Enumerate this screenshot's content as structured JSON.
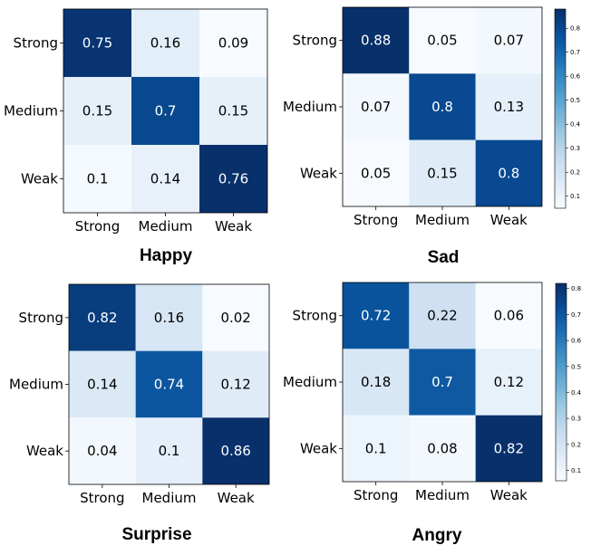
{
  "chart_data": [
    {
      "type": "heatmap",
      "title": "Happy",
      "x_categories": [
        "Strong",
        "Medium",
        "Weak"
      ],
      "y_categories": [
        "Strong",
        "Medium",
        "Weak"
      ],
      "values": [
        [
          0.75,
          0.16,
          0.09
        ],
        [
          0.15,
          0.7,
          0.15
        ],
        [
          0.1,
          0.14,
          0.76
        ]
      ],
      "colorbar": false,
      "colormap": "Blues"
    },
    {
      "type": "heatmap",
      "title": "Sad",
      "x_categories": [
        "Strong",
        "Medium",
        "Weak"
      ],
      "y_categories": [
        "Strong",
        "Medium",
        "Weak"
      ],
      "values": [
        [
          0.88,
          0.05,
          0.07
        ],
        [
          0.07,
          0.8,
          0.13
        ],
        [
          0.05,
          0.15,
          0.8
        ]
      ],
      "colorbar": true,
      "colorbar_ticks": [
        "0.1",
        "0.2",
        "0.3",
        "0.4",
        "0.5",
        "0.6",
        "0.7",
        "0.8"
      ],
      "colormap": "Blues"
    },
    {
      "type": "heatmap",
      "title": "Surprise",
      "x_categories": [
        "Strong",
        "Medium",
        "Weak"
      ],
      "y_categories": [
        "Strong",
        "Medium",
        "Weak"
      ],
      "values": [
        [
          0.82,
          0.16,
          0.02
        ],
        [
          0.14,
          0.74,
          0.12
        ],
        [
          0.04,
          0.1,
          0.86
        ]
      ],
      "colorbar": false,
      "colormap": "Blues"
    },
    {
      "type": "heatmap",
      "title": "Angry",
      "x_categories": [
        "Strong",
        "Medium",
        "Weak"
      ],
      "y_categories": [
        "Strong",
        "Medium",
        "Weak"
      ],
      "values": [
        [
          0.72,
          0.22,
          0.06
        ],
        [
          0.18,
          0.7,
          0.12
        ],
        [
          0.1,
          0.08,
          0.82
        ]
      ],
      "colorbar": true,
      "colorbar_ticks": [
        "0.1",
        "0.2",
        "0.3",
        "0.4",
        "0.5",
        "0.6",
        "0.7",
        "0.8"
      ],
      "colormap": "Blues"
    }
  ]
}
